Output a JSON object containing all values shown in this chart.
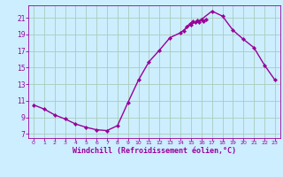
{
  "x": [
    0,
    1,
    2,
    3,
    4,
    5,
    6,
    7,
    8,
    9,
    10,
    11,
    12,
    13,
    14,
    15,
    16,
    17,
    18,
    19,
    20,
    21,
    22,
    23
  ],
  "y": [
    10.5,
    10.0,
    9.3,
    8.8,
    8.2,
    7.8,
    7.5,
    7.4,
    8.0,
    10.8,
    13.5,
    15.7,
    17.1,
    18.6,
    19.2,
    20.2,
    20.8,
    21.8,
    21.2,
    19.5,
    18.4,
    17.4,
    15.3,
    13.5
  ],
  "line_color": "#990099",
  "bg_color": "#cceeff",
  "grid_color": "#aaccbb",
  "xlabel": "Windchill (Refroidissement éolien,°C)",
  "xlabel_color": "#990099",
  "tick_color": "#990099",
  "ylim": [
    6.5,
    22.5
  ],
  "xlim": [
    -0.5,
    23.5
  ],
  "yticks": [
    7,
    9,
    11,
    13,
    15,
    17,
    19,
    21
  ],
  "xticks": [
    0,
    1,
    2,
    3,
    4,
    5,
    6,
    7,
    8,
    9,
    10,
    11,
    12,
    13,
    14,
    15,
    16,
    17,
    18,
    19,
    20,
    21,
    22,
    23
  ],
  "marker": "D",
  "marker_size": 2.2,
  "linewidth": 1.0,
  "jagged_x": [
    14.3,
    14.6,
    14.9,
    15.2,
    15.4,
    15.6,
    15.8,
    16.0,
    16.2,
    16.4
  ],
  "jagged_y": [
    19.4,
    19.9,
    20.3,
    20.55,
    20.45,
    20.65,
    20.5,
    20.75,
    20.6,
    20.8
  ]
}
